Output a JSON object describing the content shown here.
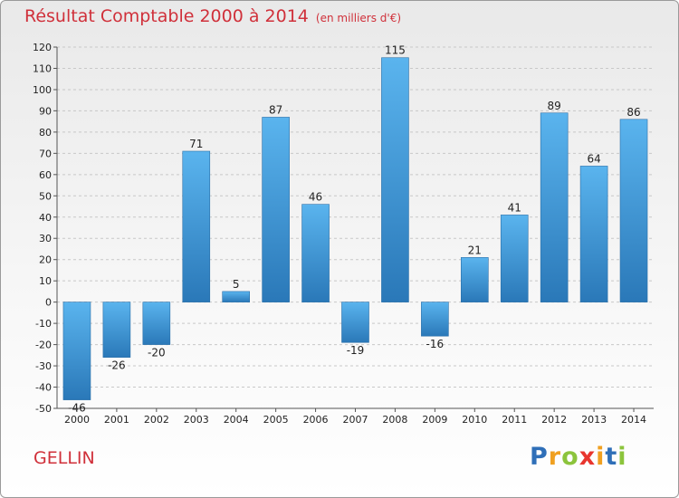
{
  "header": {
    "title": "Résultat Comptable 2000 à 2014",
    "subtitle": "(en milliers d'€)"
  },
  "footer": {
    "commune": "GELLIN",
    "logo_letters": [
      "P",
      "r",
      "o",
      "x",
      "i",
      "t",
      "i"
    ],
    "logo_colors": [
      "#2f6fb8",
      "#f0a020",
      "#8cc43c",
      "#e8352e",
      "#f0a020",
      "#2f6fb8",
      "#8cc43c"
    ]
  },
  "colors": {
    "title": "#d0303a",
    "bar_light": "#5ab4ee",
    "bar_dark": "#2a78b8"
  },
  "chart_data": {
    "type": "bar",
    "title": "Résultat Comptable 2000 à 2014",
    "subtitle": "(en milliers d'€)",
    "categories": [
      "2000",
      "2001",
      "2002",
      "2003",
      "2004",
      "2005",
      "2006",
      "2007",
      "2008",
      "2009",
      "2010",
      "2011",
      "2012",
      "2013",
      "2014"
    ],
    "values": [
      -46,
      -26,
      -20,
      71,
      5,
      87,
      46,
      -19,
      115,
      -16,
      21,
      41,
      89,
      64,
      86
    ],
    "yticks": [
      -50,
      -40,
      -30,
      -20,
      -10,
      0,
      10,
      20,
      30,
      40,
      50,
      60,
      70,
      80,
      90,
      100,
      110,
      120
    ],
    "ylim": [
      -50,
      120
    ],
    "xlabel": "",
    "ylabel": "",
    "grid": true
  }
}
